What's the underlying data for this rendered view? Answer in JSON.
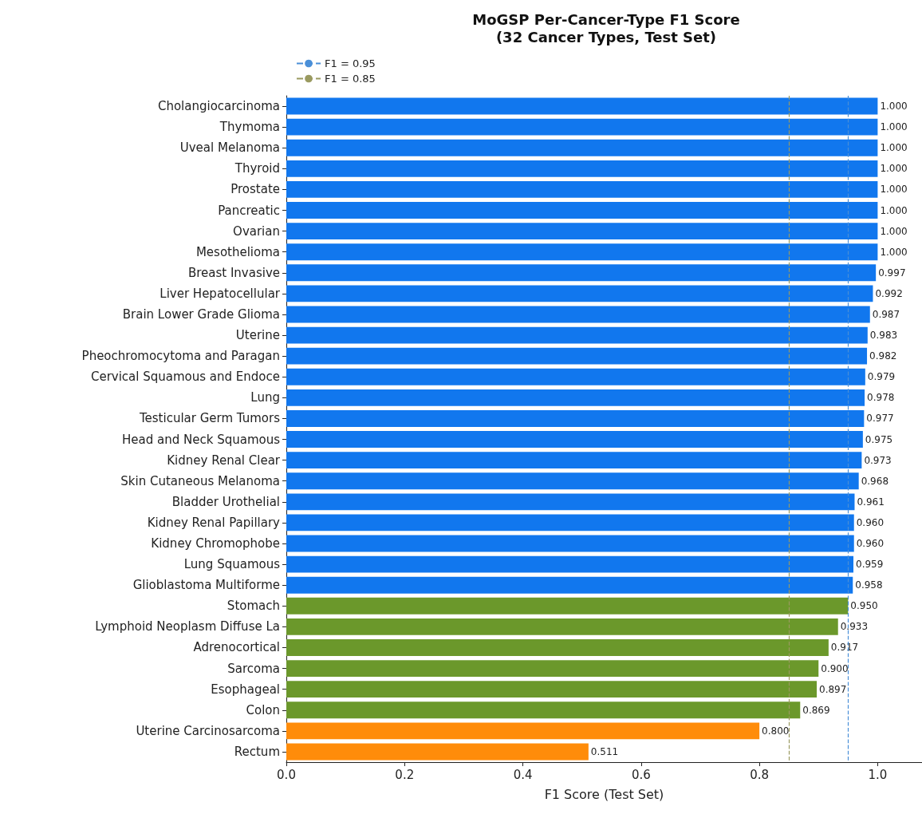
{
  "chart_data": {
    "type": "bar",
    "orientation": "horizontal",
    "title": "MoGSP Per-Cancer-Type F1 Score\n(32 Cancer Types, Test Set)",
    "xlabel": "F1 Score (Test Set)",
    "categories": [
      "Cholangiocarcinoma",
      "Thymoma",
      "Uveal Melanoma",
      "Thyroid",
      "Prostate",
      "Pancreatic",
      "Ovarian",
      "Mesothelioma",
      "Breast Invasive",
      "Liver Hepatocellular",
      "Brain Lower Grade Glioma",
      "Uterine",
      "Pheochromocytoma and Paragan",
      "Cervical Squamous and Endoce",
      "Lung",
      "Testicular Germ Tumors",
      "Head and Neck Squamous",
      "Kidney Renal Clear",
      "Skin Cutaneous Melanoma",
      "Bladder Urothelial",
      "Kidney Renal Papillary",
      "Kidney Chromophobe",
      "Lung Squamous",
      "Glioblastoma Multiforme",
      "Stomach",
      "Lymphoid Neoplasm Diffuse La",
      "Adrenocortical",
      "Sarcoma",
      "Esophageal",
      "Colon",
      "Uterine Carcinosarcoma",
      "Rectum"
    ],
    "values": [
      1.0,
      1.0,
      1.0,
      1.0,
      1.0,
      1.0,
      1.0,
      1.0,
      0.997,
      0.992,
      0.987,
      0.983,
      0.982,
      0.979,
      0.978,
      0.977,
      0.975,
      0.973,
      0.968,
      0.961,
      0.96,
      0.96,
      0.959,
      0.958,
      0.95,
      0.933,
      0.917,
      0.9,
      0.897,
      0.869,
      0.8,
      0.511
    ],
    "value_labels": [
      "1.000",
      "1.000",
      "1.000",
      "1.000",
      "1.000",
      "1.000",
      "1.000",
      "1.000",
      "0.997",
      "0.992",
      "0.987",
      "0.983",
      "0.982",
      "0.979",
      "0.978",
      "0.977",
      "0.975",
      "0.973",
      "0.968",
      "0.961",
      "0.960",
      "0.960",
      "0.959",
      "0.958",
      "0.950",
      "0.933",
      "0.917",
      "0.900",
      "0.897",
      "0.869",
      "0.800",
      "0.511"
    ],
    "colors": [
      "#1177ee",
      "#1177ee",
      "#1177ee",
      "#1177ee",
      "#1177ee",
      "#1177ee",
      "#1177ee",
      "#1177ee",
      "#1177ee",
      "#1177ee",
      "#1177ee",
      "#1177ee",
      "#1177ee",
      "#1177ee",
      "#1177ee",
      "#1177ee",
      "#1177ee",
      "#1177ee",
      "#1177ee",
      "#1177ee",
      "#1177ee",
      "#1177ee",
      "#1177ee",
      "#1177ee",
      "#6b982b",
      "#6b982b",
      "#6b982b",
      "#6b982b",
      "#6b982b",
      "#6b982b",
      "#ff8c0a",
      "#ff8c0a"
    ],
    "xlim": [
      0,
      1.075
    ],
    "xticks": [
      {
        "value": 0,
        "label": "0.0"
      },
      {
        "value": 0.2,
        "label": "0.2"
      },
      {
        "value": 0.4,
        "label": "0.4"
      },
      {
        "value": 0.6,
        "label": "0.6"
      },
      {
        "value": 0.8,
        "label": "0.8"
      },
      {
        "value": 1,
        "label": "1.0"
      }
    ],
    "ref_lines": [
      {
        "axis": "x",
        "value": 0.95,
        "label": "F1 = 0.95",
        "color": "#4a8fd8",
        "line_style": "dashed"
      },
      {
        "axis": "x",
        "value": 0.85,
        "label": "F1 = 0.85",
        "color": "#9a9a60",
        "line_style": "dashed"
      }
    ],
    "legend": "top left",
    "grid": false
  }
}
